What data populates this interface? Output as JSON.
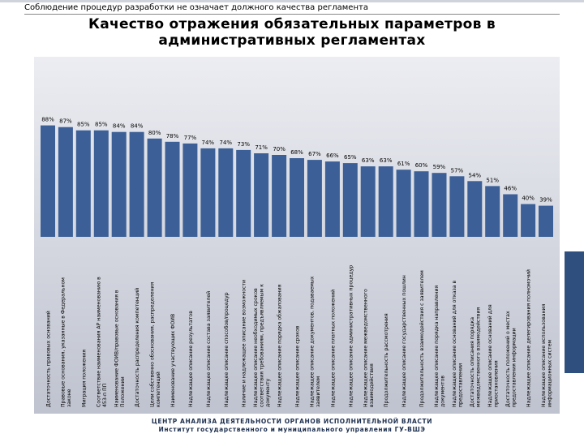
{
  "header": {
    "note": "Соблюдение процедур разработки не означает должного качества регламента",
    "title_line1": "Качество  отражения обязательных параметров в",
    "title_line2": "административных регламентах"
  },
  "footer": {
    "line1": "ЦЕНТР АНАЛИЗА ДЕЯТЕЛЬНОСТИ ОРГАНОВ ИСПОЛНИТЕЛЬНОЙ ВЛАСТИ",
    "line2": "Институт государственного и муниципального управления ГУ-ВШЭ"
  },
  "colors": {
    "bar": "#3b5f96",
    "plot_bg_top": "#ecedf2",
    "plot_bg_bottom": "#bfc3cf",
    "footer_text": "#1e3050"
  },
  "chart_data": {
    "type": "bar",
    "title": "Качество  отражения обязательных параметров в административных регламентах",
    "ylim": [
      0,
      100
    ],
    "grid": false,
    "legend": "none",
    "categories": [
      "Достаточность правовых оснований",
      "Правовые основания, указанные в Федеральном законе",
      "Миграция положения",
      "Соответствие наименования АР наименованию в 453-п ПП",
      "Наименование ФОИВ/правовые основания в Положении",
      "Достаточность распределения компетенций",
      "Цели собственно обоснования, распределения компетенций",
      "Наименование участвующих ФОИВ",
      "Надлежащее описание результатов",
      "Надлежащее описание состава заявителей",
      "Надлежащее описание способов/процедур",
      "Наличие и надлежащее описание возможности",
      "Надлежащее описание необходимых сроков соответствия требованиям, предъявляемым к документу",
      "Надлежащее описание порядка обжалования",
      "Надлежащее описание сроков",
      "Надлежащее описание документов, подаваемых заявителем",
      "Надлежащее описание платных положений",
      "Надлежащее описание административных процедур",
      "Надлежащее описание межведомственного взаимодействия",
      "Продолжительность рассмотрения",
      "Надлежащее описание государственных пошлин",
      "Продолжительность взаимодействия с заявителем",
      "Надлежащее описание порядка направления документов",
      "Надлежащее описание оснований для отказа в предоставлении",
      "Достаточность описания порядка межведомственного взаимодействия",
      "Надлежащее описание оснований для приостановления",
      "Достаточность положений о местах предоставления информации",
      "Надлежащее описание делегирования полномочий",
      "Надлежащее описание использования информационных систем"
    ],
    "values": [
      88,
      87,
      85,
      85,
      84,
      84,
      80,
      78,
      77,
      74,
      74,
      73,
      71,
      70,
      68,
      67,
      66,
      65,
      63,
      63,
      61,
      60,
      59,
      57,
      54,
      51,
      46,
      40,
      39
    ],
    "value_labels": [
      "88%",
      "87%",
      "85%",
      "85%",
      "84%",
      "84%",
      "80%",
      "78%",
      "77%",
      "74%",
      "74%",
      "73%",
      "71%",
      "70%",
      "68%",
      "67%",
      "66%",
      "65%",
      "63%",
      "63%",
      "61%",
      "60%",
      "59%",
      "57%",
      "54%",
      "51%",
      "46%",
      "40%",
      "39%"
    ]
  }
}
